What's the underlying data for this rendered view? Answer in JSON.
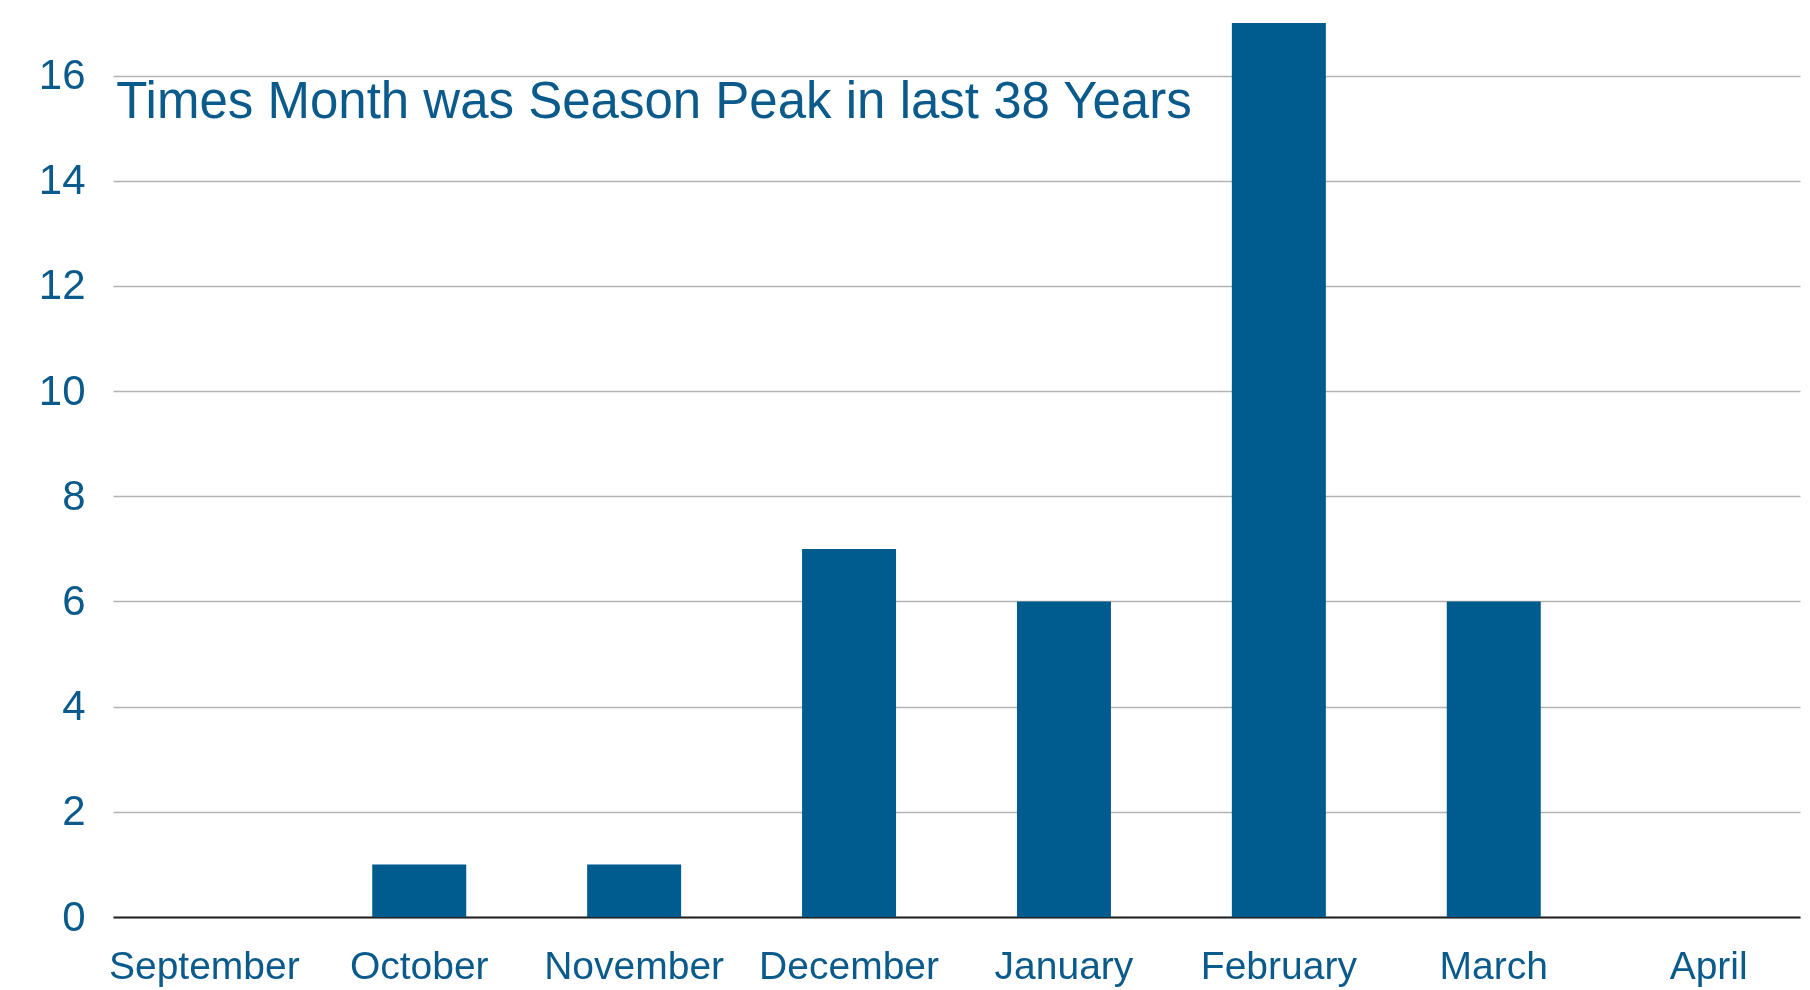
{
  "chart_data": {
    "type": "bar",
    "title": "Times Month was Season\nPeak in last 38 Years",
    "categories": [
      "September",
      "October",
      "November",
      "December",
      "January",
      "February",
      "March",
      "April"
    ],
    "values": [
      0,
      1,
      1,
      7,
      6,
      17,
      6,
      0
    ],
    "color": "#005b8f",
    "ylim": [
      0,
      17
    ],
    "yticks": [
      0,
      2,
      4,
      6,
      8,
      10,
      12,
      14,
      16
    ],
    "grid": "y"
  }
}
